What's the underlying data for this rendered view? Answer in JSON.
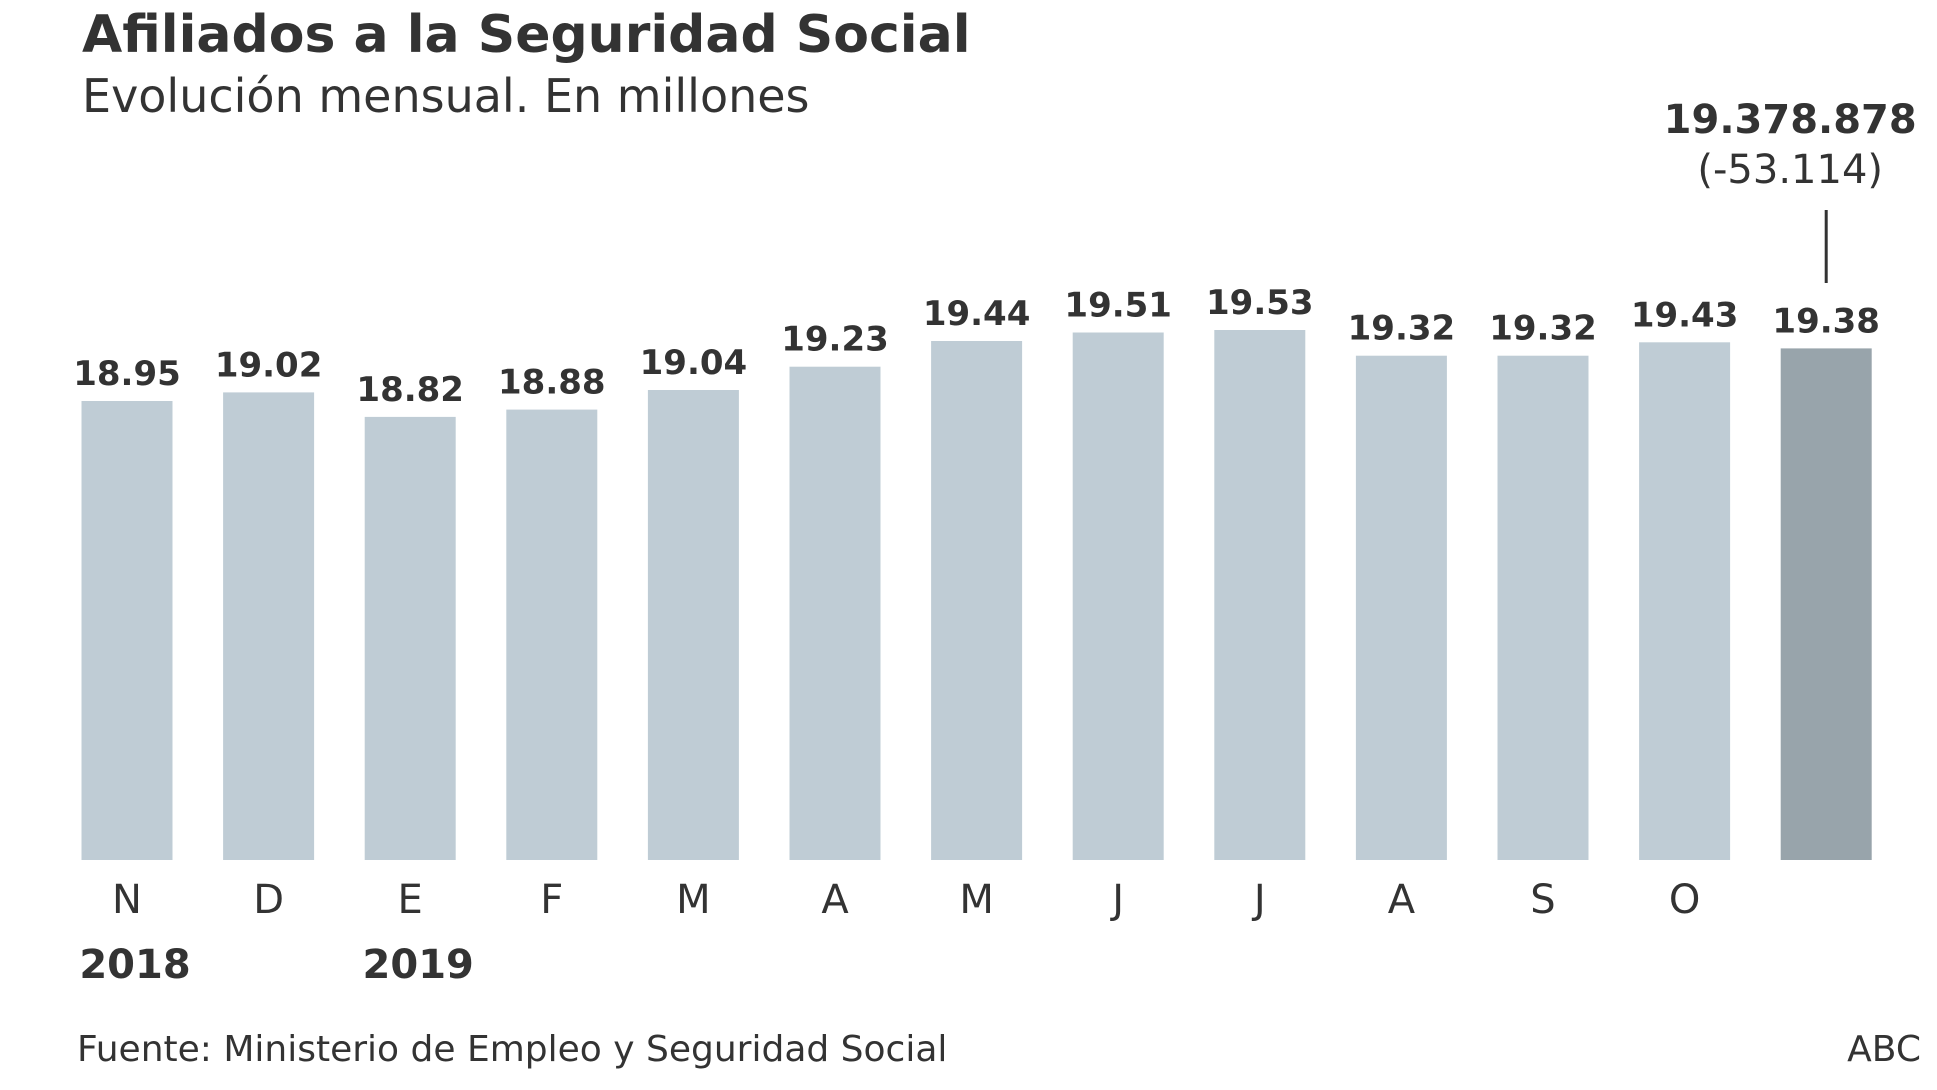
{
  "header": {
    "title": "Afiliados a la Seguridad Social",
    "subtitle": "Evolución mensual. En millones"
  },
  "annotation": {
    "value": "19.378.878",
    "change": "(-53.114)"
  },
  "footer": {
    "source": "Fuente: Ministerio de Empleo y Seguridad Social",
    "brand": "ABC"
  },
  "chart_data": {
    "type": "bar",
    "title": "Afiliados a la Seguridad Social",
    "subtitle": "Evolución mensual. En millones",
    "categories": [
      "N",
      "D",
      "E",
      "F",
      "M",
      "A",
      "M",
      "J",
      "J",
      "A",
      "S",
      "O",
      ""
    ],
    "values": [
      18.95,
      19.02,
      18.82,
      18.88,
      19.04,
      19.23,
      19.44,
      19.51,
      19.53,
      19.32,
      19.32,
      19.43,
      19.38
    ],
    "value_labels": [
      "18.95",
      "19.02",
      "18.82",
      "18.88",
      "19.04",
      "19.23",
      "19.44",
      "19.51",
      "19.53",
      "19.32",
      "19.32",
      "19.43",
      "19.38"
    ],
    "year_labels": [
      {
        "index": 0,
        "label": "2018"
      },
      {
        "index": 2,
        "label": "2019"
      }
    ],
    "highlight_index": 12,
    "ylim": [
      15.2,
      19.62
    ],
    "grid": false,
    "xlabel": "",
    "ylabel": "",
    "colors": {
      "bar": "#bfccd5",
      "highlight": "#98a4ab",
      "text": "#333333",
      "leader_line": "#333333"
    }
  }
}
